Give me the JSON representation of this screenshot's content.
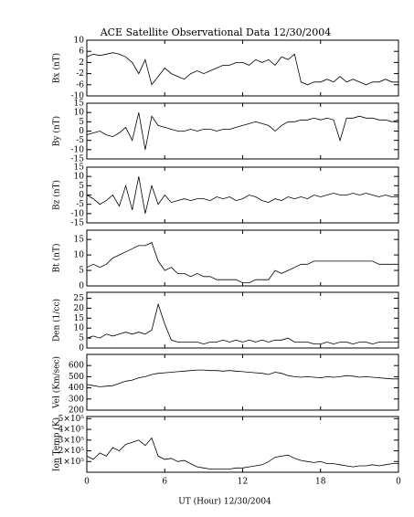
{
  "chart_data": {
    "type": "line",
    "title": "ACE Satellite Observational Data   12/30/2004",
    "xlabel": "UT (Hour)   12/30/2004",
    "x": [
      0,
      0.5,
      1,
      1.5,
      2,
      2.5,
      3,
      3.5,
      4,
      4.5,
      5,
      5.5,
      6,
      6.5,
      7,
      7.5,
      8,
      8.5,
      9,
      9.5,
      10,
      10.5,
      11,
      11.5,
      12,
      12.5,
      13,
      13.5,
      14,
      14.5,
      15,
      15.5,
      16,
      16.5,
      17,
      17.5,
      18,
      18.5,
      19,
      19.5,
      20,
      20.5,
      21,
      21.5,
      22,
      22.5,
      23,
      23.5,
      24
    ],
    "xlim": [
      0,
      24
    ],
    "xticks": [
      0,
      6,
      12,
      18,
      {
        "value": 24,
        "label": "0"
      }
    ],
    "color": "#000000",
    "panels": [
      {
        "ylabel": "Bx (nT)",
        "ylim": [
          -10,
          10
        ],
        "yticks": [
          -10,
          -6,
          -2,
          2,
          6,
          10
        ],
        "values": [
          4,
          5,
          4.5,
          5,
          5.5,
          5,
          4,
          2,
          -2,
          3,
          -6,
          -3,
          0,
          -2,
          -3,
          -4,
          -2,
          -1,
          -2,
          -1,
          0,
          1,
          1,
          2,
          2,
          1,
          3,
          2,
          3,
          1,
          4,
          3,
          5,
          -5,
          -6,
          -5,
          -5,
          -4,
          -5,
          -3,
          -5,
          -4,
          -5,
          -6,
          -5,
          -5,
          -4,
          -5,
          -5
        ]
      },
      {
        "ylabel": "By (nT)",
        "ylim": [
          -15,
          15
        ],
        "yticks": [
          -15,
          -10,
          -5,
          0,
          5,
          10,
          15
        ],
        "values": [
          -2,
          -1,
          0,
          -2,
          -3,
          -1,
          2,
          -5,
          10,
          -10,
          8,
          3,
          2,
          1,
          0,
          0,
          1,
          0,
          1,
          1,
          0,
          1,
          1,
          2,
          3,
          4,
          5,
          4,
          3,
          0,
          3,
          5,
          5,
          6,
          6,
          7,
          6,
          7,
          6,
          -5,
          7,
          7,
          8,
          7,
          7,
          6,
          6,
          5,
          6
        ]
      },
      {
        "ylabel": "Bz (nT)",
        "ylim": [
          -15,
          15
        ],
        "yticks": [
          -15,
          -10,
          -5,
          0,
          5,
          10,
          15
        ],
        "values": [
          0,
          -2,
          -5,
          -3,
          0,
          -6,
          5,
          -8,
          10,
          -10,
          5,
          -5,
          0,
          -4,
          -3,
          -2,
          -3,
          -2,
          -2,
          -3,
          -1,
          -2,
          -1,
          -3,
          -2,
          0,
          -1,
          -3,
          -4,
          -2,
          -3,
          -1,
          -2,
          -1,
          -2,
          0,
          -1,
          0,
          1,
          0,
          0,
          1,
          0,
          1,
          0,
          -1,
          0,
          -1,
          -1
        ]
      },
      {
        "ylabel": "Bt (nT)",
        "ylim": [
          0,
          18
        ],
        "yticks": [
          0,
          5,
          10,
          15
        ],
        "values": [
          6,
          7,
          6,
          7,
          9,
          10,
          11,
          12,
          13,
          13,
          14,
          8,
          5,
          6,
          4,
          4,
          3,
          4,
          3,
          3,
          2,
          2,
          2,
          2,
          1,
          1,
          2,
          2,
          2,
          5,
          4,
          5,
          6,
          7,
          7,
          8,
          8,
          8,
          8,
          8,
          8,
          8,
          8,
          8,
          8,
          7,
          7,
          7,
          7
        ]
      },
      {
        "ylabel": "Den (1/cc)",
        "ylim": [
          0,
          28
        ],
        "yticks": [
          0,
          5,
          10,
          15,
          20,
          25
        ],
        "values": [
          5,
          6,
          5,
          7,
          6,
          7,
          8,
          7,
          8,
          7,
          9,
          22,
          12,
          4,
          3,
          3,
          3,
          3,
          2,
          3,
          3,
          4,
          3,
          4,
          3,
          4,
          3,
          4,
          3,
          4,
          4,
          5,
          3,
          3,
          3,
          2,
          2,
          3,
          2,
          3,
          3,
          2,
          3,
          3,
          2,
          3,
          3,
          3,
          3
        ]
      },
      {
        "ylabel": "Vel (Km/sec)",
        "ylim": [
          200,
          700
        ],
        "yticks": [
          200,
          300,
          400,
          500,
          600
        ],
        "values": [
          430,
          420,
          410,
          415,
          420,
          440,
          460,
          470,
          490,
          500,
          520,
          530,
          535,
          540,
          545,
          550,
          555,
          560,
          560,
          555,
          555,
          550,
          555,
          550,
          545,
          540,
          535,
          530,
          520,
          540,
          530,
          510,
          500,
          495,
          500,
          495,
          490,
          500,
          495,
          500,
          510,
          505,
          495,
          500,
          495,
          490,
          485,
          480,
          480
        ]
      },
      {
        "ylabel": "Ion Temp (K)",
        "ylim": [
          0,
          520000
        ],
        "yticks": [
          {
            "value": 100000,
            "label": "1×10⁵"
          },
          {
            "value": 200000,
            "label": "2×10⁵"
          },
          {
            "value": 300000,
            "label": "3×10⁵"
          },
          {
            "value": 400000,
            "label": "4×10⁵"
          },
          {
            "value": 500000,
            "label": "5×10⁵"
          }
        ],
        "values": [
          150000,
          120000,
          180000,
          150000,
          230000,
          200000,
          260000,
          280000,
          300000,
          250000,
          320000,
          150000,
          120000,
          130000,
          100000,
          110000,
          80000,
          50000,
          40000,
          30000,
          30000,
          30000,
          30000,
          40000,
          40000,
          50000,
          60000,
          70000,
          100000,
          140000,
          150000,
          160000,
          130000,
          110000,
          100000,
          90000,
          100000,
          80000,
          80000,
          70000,
          60000,
          50000,
          60000,
          60000,
          70000,
          60000,
          70000,
          80000,
          80000
        ]
      }
    ]
  }
}
